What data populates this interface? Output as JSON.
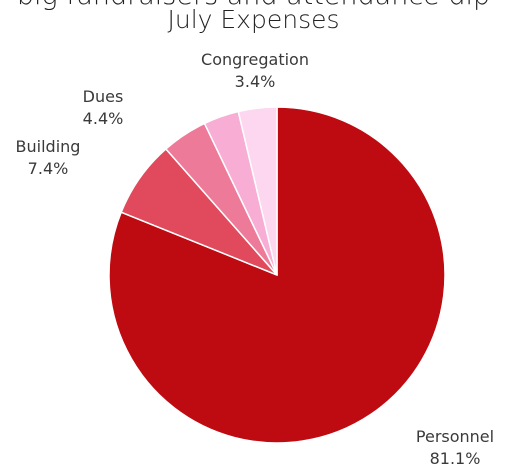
{
  "header": {
    "cut_off_title": "big fundraisers and attendance dip"
  },
  "chart_data": {
    "type": "pie",
    "title": "July Expenses",
    "slices": [
      {
        "label": "Personnel",
        "value": 81.1,
        "value_label": "81.1%",
        "color": "#be0a11"
      },
      {
        "label": "Building",
        "value": 7.4,
        "value_label": "7.4%",
        "color": "#e04a5c"
      },
      {
        "label": "Dues",
        "value": 4.4,
        "value_label": "4.4%",
        "color": "#ee7a99"
      },
      {
        "label": "Congregation",
        "value": 3.4,
        "value_label": "3.4%",
        "color": "#f8aed4"
      },
      {
        "label": "",
        "value": 3.7,
        "value_label": "",
        "color": "#fdd6f0"
      }
    ],
    "start_angle_deg": 0,
    "direction": "clockwise",
    "legend": "none"
  }
}
